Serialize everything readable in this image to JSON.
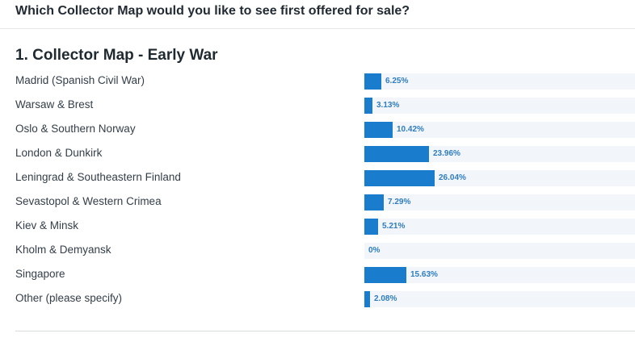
{
  "question": "Which Collector Map would you like to see first offered for sale?",
  "section_title": "1. Collector Map - Early War",
  "colors": {
    "bar": "#1a7ccc",
    "track": "#f2f6fa",
    "percent_text": "#2e7dbf"
  },
  "chart_data": {
    "type": "bar",
    "orientation": "horizontal",
    "title": "1. Collector Map - Early War",
    "categories": [
      "Madrid (Spanish Civil War)",
      "Warsaw & Brest",
      "Oslo & Southern Norway",
      "London & Dunkirk",
      "Leningrad & Southeastern Finland",
      "Sevastopol & Western Crimea",
      "Kiev & Minsk",
      "Kholm & Demyansk",
      "Singapore",
      "Other (please specify)"
    ],
    "values": [
      6.25,
      3.13,
      10.42,
      23.96,
      26.04,
      7.29,
      5.21,
      0,
      15.63,
      2.08
    ],
    "labels": [
      "6.25%",
      "3.13%",
      "10.42%",
      "23.96%",
      "26.04%",
      "7.29%",
      "5.21%",
      "0%",
      "15.63%",
      "2.08%"
    ],
    "xlim": [
      0,
      100
    ],
    "grid": false
  }
}
